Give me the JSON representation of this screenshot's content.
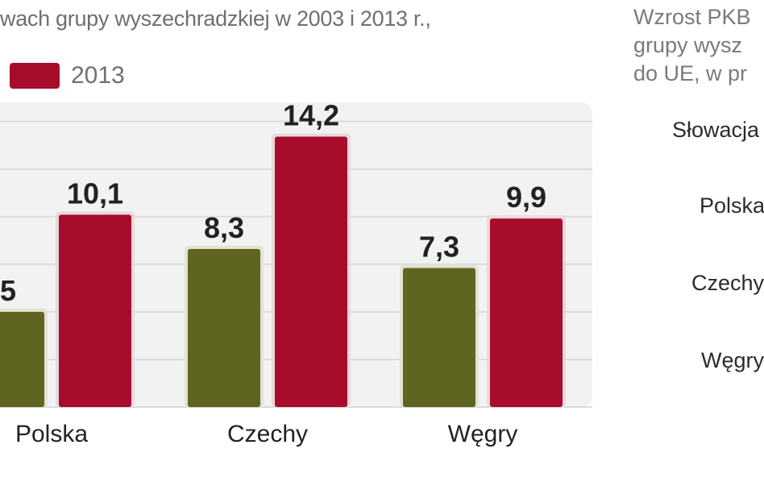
{
  "chart_data": {
    "type": "bar",
    "title": "wach grupy wyszechradzkiej w 2003 i 2013 r.,",
    "categories": [
      "Polska",
      "Czechy",
      "Węgry"
    ],
    "series": [
      {
        "name": "",
        "color": "#5f6520",
        "values": [
          5,
          8.3,
          7.3
        ],
        "labels": [
          "5",
          "8,3",
          "7,3"
        ]
      },
      {
        "name": "2013",
        "color": "#a80c2c",
        "values": [
          10.1,
          14.2,
          9.9
        ],
        "labels": [
          "10,1",
          "14,2",
          "9,9"
        ]
      }
    ],
    "ylim": [
      0,
      16
    ],
    "grid": true,
    "legend": "top-left"
  },
  "right_panel": {
    "header_lines": [
      "Wzrost PKB",
      "grupy wysz",
      "do UE, w pr"
    ],
    "items": [
      "Słowacja",
      "Polska",
      "Czechy",
      "Węgry"
    ]
  }
}
